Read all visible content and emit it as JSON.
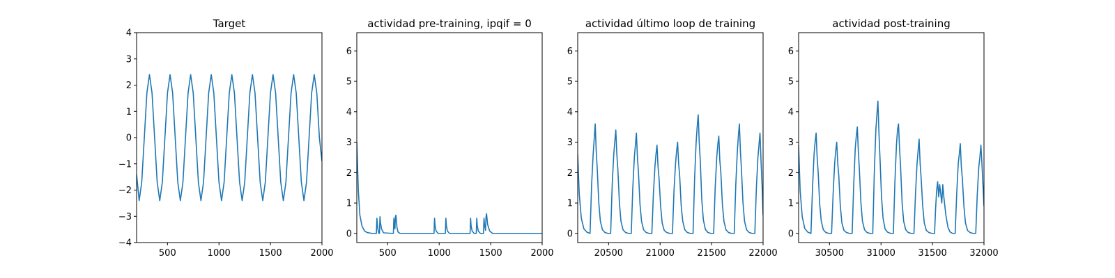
{
  "colors": {
    "series": "#1f77b4"
  },
  "chart_data": [
    {
      "type": "line",
      "title": "Target",
      "xlim": [
        200,
        2000
      ],
      "ylim": [
        -4,
        4
      ],
      "xticks": [
        500,
        1000,
        1500,
        2000
      ],
      "xtick_labels": [
        "500",
        "1000",
        "1500",
        "2000"
      ],
      "yticks": [
        -4,
        -3,
        -2,
        -1,
        0,
        1,
        2,
        3,
        4
      ],
      "ytick_labels": [
        "−4",
        "−3",
        "−2",
        "−1",
        "0",
        "1",
        "2",
        "3",
        "4"
      ],
      "series": [
        {
          "x": [
            200,
            225,
            250,
            275,
            300,
            325,
            350,
            375,
            400,
            425,
            450,
            475,
            500,
            525,
            550,
            575,
            600,
            625,
            650,
            675,
            700,
            725,
            750,
            775,
            800,
            825,
            850,
            875,
            900,
            925,
            950,
            975,
            1000,
            1025,
            1050,
            1075,
            1100,
            1125,
            1150,
            1175,
            1200,
            1225,
            1250,
            1275,
            1300,
            1325,
            1350,
            1375,
            1400,
            1425,
            1450,
            1475,
            1500,
            1525,
            1550,
            1575,
            1600,
            1625,
            1650,
            1675,
            1700,
            1725,
            1750,
            1775,
            1800,
            1825,
            1850,
            1875,
            1900,
            1925,
            1950,
            1975,
            2000
          ],
          "y": [
            -1.4,
            -2.4,
            -1.7,
            0.0,
            1.7,
            2.4,
            1.7,
            0.0,
            -1.7,
            -2.4,
            -1.7,
            0.0,
            1.7,
            2.4,
            1.7,
            0.0,
            -1.7,
            -2.4,
            -1.7,
            0.0,
            1.7,
            2.4,
            1.7,
            0.0,
            -1.7,
            -2.4,
            -1.7,
            0.0,
            1.7,
            2.4,
            1.7,
            0.0,
            -1.7,
            -2.4,
            -1.7,
            0.0,
            1.7,
            2.4,
            1.7,
            0.0,
            -1.7,
            -2.4,
            -1.7,
            0.0,
            1.7,
            2.4,
            1.7,
            0.0,
            -1.7,
            -2.4,
            -1.7,
            0.0,
            1.7,
            2.4,
            1.7,
            0.0,
            -1.7,
            -2.4,
            -1.7,
            0.0,
            1.7,
            2.4,
            1.7,
            0.0,
            -1.7,
            -2.4,
            -1.7,
            0.0,
            1.7,
            2.4,
            1.7,
            0.0,
            -0.9
          ]
        }
      ]
    },
    {
      "type": "line",
      "title": "actividad pre-training, ipqif = 0",
      "xlim": [
        200,
        2000
      ],
      "ylim": [
        -0.3,
        6.6
      ],
      "xticks": [
        500,
        1000,
        1500,
        2000
      ],
      "xtick_labels": [
        "500",
        "1000",
        "1500",
        "2000"
      ],
      "yticks": [
        0,
        1,
        2,
        3,
        4,
        5,
        6
      ],
      "ytick_labels": [
        "0",
        "1",
        "2",
        "3",
        "4",
        "5",
        "6"
      ],
      "series": [
        {
          "x": [
            200,
            215,
            230,
            250,
            275,
            300,
            350,
            390,
            395,
            400,
            405,
            410,
            415,
            420,
            425,
            430,
            440,
            460,
            555,
            560,
            565,
            570,
            575,
            580,
            585,
            590,
            600,
            620,
            950,
            955,
            960,
            970,
            990,
            1060,
            1065,
            1070,
            1080,
            1100,
            1300,
            1305,
            1310,
            1320,
            1340,
            1360,
            1365,
            1370,
            1380,
            1400,
            1430,
            1435,
            1440,
            1450,
            1455,
            1460,
            1470,
            1490,
            1520,
            2000
          ],
          "y": [
            3.0,
            1.4,
            0.6,
            0.25,
            0.08,
            0.03,
            0.0,
            0.0,
            0.5,
            0.3,
            0.15,
            0.05,
            0.0,
            0.0,
            0.55,
            0.35,
            0.15,
            0.02,
            0.0,
            0.5,
            0.3,
            0.15,
            0.55,
            0.6,
            0.4,
            0.2,
            0.05,
            0.0,
            0.0,
            0.5,
            0.25,
            0.08,
            0.0,
            0.0,
            0.5,
            0.25,
            0.08,
            0.0,
            0.0,
            0.5,
            0.25,
            0.08,
            0.0,
            0.0,
            0.5,
            0.25,
            0.08,
            0.0,
            0.0,
            0.5,
            0.3,
            0.1,
            0.55,
            0.65,
            0.3,
            0.08,
            0.0,
            0.0
          ]
        }
      ]
    },
    {
      "type": "line",
      "title": "actividad último loop de training",
      "xlim": [
        20200,
        22000
      ],
      "ylim": [
        -0.3,
        6.6
      ],
      "xticks": [
        20500,
        21000,
        21500,
        22000
      ],
      "xtick_labels": [
        "20500",
        "21000",
        "21500",
        "22000"
      ],
      "yticks": [
        0,
        1,
        2,
        3,
        4,
        5,
        6
      ],
      "ytick_labels": [
        "0",
        "1",
        "2",
        "3",
        "4",
        "5",
        "6"
      ],
      "series": [
        {
          "x": [
            20200,
            20215,
            20235,
            20260,
            20290,
            20320,
            20335,
            20350,
            20360,
            20370,
            20380,
            20390,
            20405,
            20420,
            20440,
            20465,
            20495,
            20520,
            20535,
            20550,
            20560,
            20570,
            20580,
            20590,
            20605,
            20620,
            20640,
            20665,
            20695,
            20720,
            20735,
            20750,
            20760,
            20770,
            20780,
            20790,
            20805,
            20820,
            20840,
            20865,
            20895,
            20920,
            20935,
            20950,
            20960,
            20970,
            20980,
            20990,
            21005,
            21020,
            21040,
            21065,
            21095,
            21120,
            21135,
            21150,
            21160,
            21170,
            21180,
            21190,
            21205,
            21220,
            21240,
            21265,
            21295,
            21320,
            21335,
            21350,
            21360,
            21370,
            21380,
            21390,
            21405,
            21420,
            21440,
            21465,
            21495,
            21520,
            21535,
            21550,
            21560,
            21570,
            21580,
            21590,
            21605,
            21620,
            21640,
            21665,
            21695,
            21720,
            21735,
            21750,
            21760,
            21770,
            21780,
            21790,
            21805,
            21820,
            21840,
            21865,
            21895,
            21920,
            21935,
            21950,
            21960,
            21970,
            21980,
            21990,
            22000
          ],
          "y": [
            2.6,
            1.3,
            0.5,
            0.15,
            0.04,
            0.0,
            1.6,
            2.6,
            3.1,
            3.6,
            2.7,
            2.1,
            1.0,
            0.4,
            0.12,
            0.03,
            0.0,
            0.0,
            1.6,
            2.6,
            3.0,
            3.4,
            2.6,
            2.1,
            1.0,
            0.4,
            0.12,
            0.03,
            0.0,
            0.0,
            1.5,
            2.5,
            2.9,
            3.3,
            2.5,
            2.0,
            0.95,
            0.4,
            0.12,
            0.03,
            0.0,
            0.0,
            1.3,
            2.2,
            2.6,
            2.9,
            2.2,
            1.8,
            0.9,
            0.35,
            0.1,
            0.03,
            0.0,
            0.0,
            1.4,
            2.3,
            2.7,
            3.0,
            2.3,
            1.9,
            0.9,
            0.4,
            0.12,
            0.03,
            0.0,
            0.0,
            1.8,
            3.0,
            3.5,
            3.9,
            3.0,
            2.4,
            1.1,
            0.45,
            0.13,
            0.03,
            0.0,
            0.0,
            1.5,
            2.5,
            2.9,
            3.2,
            2.4,
            2.0,
            0.95,
            0.4,
            0.12,
            0.03,
            0.0,
            0.0,
            1.6,
            2.7,
            3.2,
            3.6,
            2.7,
            2.1,
            1.0,
            0.4,
            0.12,
            0.03,
            0.0,
            0.0,
            1.5,
            2.5,
            2.9,
            3.3,
            2.4,
            1.6,
            0.6
          ]
        }
      ]
    },
    {
      "type": "line",
      "title": "actividad post-training",
      "xlim": [
        30200,
        32000
      ],
      "ylim": [
        -0.3,
        6.6
      ],
      "xticks": [
        30500,
        31000,
        31500,
        32000
      ],
      "xtick_labels": [
        "30500",
        "31000",
        "31500",
        "32000"
      ],
      "yticks": [
        0,
        1,
        2,
        3,
        4,
        5,
        6
      ],
      "ytick_labels": [
        "0",
        "1",
        "2",
        "3",
        "4",
        "5",
        "6"
      ],
      "series": [
        {
          "x": [
            30200,
            30215,
            30235,
            30260,
            30290,
            30320,
            30335,
            30350,
            30360,
            30370,
            30380,
            30390,
            30405,
            30420,
            30440,
            30465,
            30495,
            30520,
            30535,
            30550,
            30560,
            30570,
            30580,
            30590,
            30605,
            30620,
            30640,
            30665,
            30695,
            30720,
            30735,
            30750,
            30760,
            30770,
            30780,
            30790,
            30805,
            30820,
            30840,
            30865,
            30895,
            30920,
            30935,
            30950,
            30960,
            30970,
            30980,
            30990,
            31005,
            31020,
            31040,
            31065,
            31095,
            31120,
            31135,
            31150,
            31160,
            31170,
            31180,
            31190,
            31205,
            31220,
            31240,
            31265,
            31295,
            31320,
            31335,
            31350,
            31360,
            31370,
            31380,
            31390,
            31405,
            31420,
            31440,
            31465,
            31495,
            31520,
            31530,
            31540,
            31550,
            31560,
            31570,
            31580,
            31590,
            31600,
            31610,
            31630,
            31650,
            31670,
            31695,
            31720,
            31735,
            31750,
            31760,
            31770,
            31780,
            31790,
            31805,
            31820,
            31840,
            31865,
            31895,
            31920,
            31935,
            31950,
            31960,
            31970,
            31980,
            31990,
            32000
          ],
          "y": [
            2.9,
            1.4,
            0.55,
            0.16,
            0.04,
            0.0,
            1.5,
            2.6,
            3.0,
            3.3,
            2.5,
            2.0,
            0.95,
            0.4,
            0.12,
            0.03,
            0.0,
            0.0,
            1.3,
            2.3,
            2.7,
            3.0,
            2.3,
            1.9,
            0.9,
            0.35,
            0.1,
            0.03,
            0.0,
            0.0,
            1.6,
            2.8,
            3.2,
            3.5,
            2.7,
            2.1,
            1.0,
            0.4,
            0.12,
            0.03,
            0.0,
            0.0,
            2.0,
            3.4,
            3.9,
            4.35,
            3.3,
            2.5,
            1.2,
            0.5,
            0.14,
            0.04,
            0.0,
            0.0,
            1.7,
            2.9,
            3.4,
            3.6,
            2.8,
            2.2,
            1.0,
            0.4,
            0.12,
            0.03,
            0.0,
            0.0,
            1.3,
            2.3,
            2.7,
            3.1,
            2.3,
            1.8,
            0.9,
            0.35,
            0.1,
            0.03,
            0.0,
            0.0,
            0.8,
            1.4,
            1.7,
            1.2,
            1.6,
            1.3,
            1.0,
            1.6,
            1.2,
            0.6,
            0.2,
            0.05,
            0.0,
            0.0,
            1.3,
            2.3,
            2.6,
            2.95,
            2.2,
            1.8,
            0.9,
            0.35,
            0.1,
            0.03,
            0.0,
            0.0,
            1.3,
            2.2,
            2.5,
            2.9,
            2.3,
            1.6,
            0.9
          ]
        }
      ]
    }
  ]
}
